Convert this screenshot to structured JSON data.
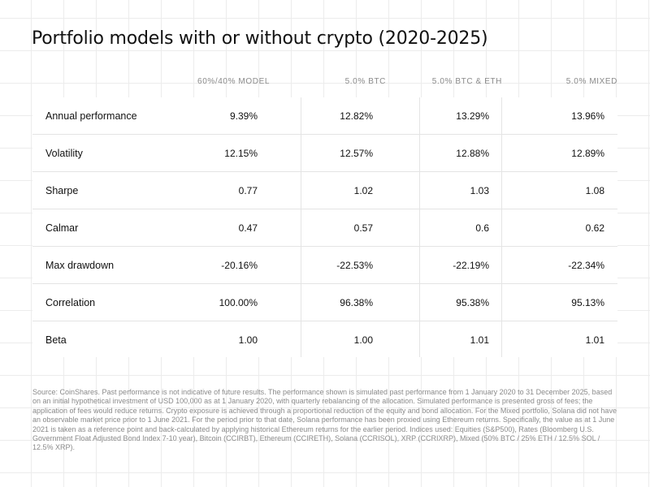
{
  "chart_data": {
    "type": "table",
    "title": "Portfolio models with or without crypto (2020-2025)",
    "columns": [
      "60%/40% MODEL",
      "5.0% BTC",
      "5.0% BTC & ETH",
      "5.0% MIXED"
    ],
    "rows": [
      {
        "label": "Annual performance",
        "values": [
          "9.39%",
          "12.82%",
          "13.29%",
          "13.96%"
        ]
      },
      {
        "label": "Volatility",
        "values": [
          "12.15%",
          "12.57%",
          "12.88%",
          "12.89%"
        ]
      },
      {
        "label": "Sharpe",
        "values": [
          "0.77",
          "1.02",
          "1.03",
          "1.08"
        ]
      },
      {
        "label": "Calmar",
        "values": [
          "0.47",
          "0.57",
          "0.6",
          "0.62"
        ]
      },
      {
        "label": "Max drawdown",
        "values": [
          "-20.16%",
          "-22.53%",
          "-22.19%",
          "-22.34%"
        ]
      },
      {
        "label": "Correlation",
        "values": [
          "100.00%",
          "96.38%",
          "95.38%",
          "95.13%"
        ]
      },
      {
        "label": "Beta",
        "values": [
          "1.00",
          "1.00",
          "1.01",
          "1.01"
        ]
      }
    ],
    "source": "Source: CoinShares. Past performance is not indicative of future results. The performance shown is simulated past performance from 1 January 2020 to 31 December 2025, based on an initial hypothetical investment of USD 100,000 as at 1 January 2020, with quarterly rebalancing of the allocation. Simulated performance is presented gross of fees; the application of fees would reduce returns. Crypto exposure is achieved through a proportional reduction of the equity and bond allocation. For the Mixed portfolio, Solana did not have an observable market price prior to 1 June 2021. For the period prior to that date, Solana performance has been proxied using Ethereum returns. Specifically, the value as at 1 June 2021 is taken as a reference point and back-calculated by applying historical Ethereum returns for the earlier period. Indices used: Equities (S&P500), Rates (Bloomberg U.S. Government Float Adjusted Bond Index 7-10 year), Bitcoin (CCIRBT), Ethereum (CCIRETH), Solana (CCRISOL), XRP (CCRIXRP), Mixed (50% BTC / 25% ETH / 12.5% SOL / 12.5% XRP)."
  }
}
